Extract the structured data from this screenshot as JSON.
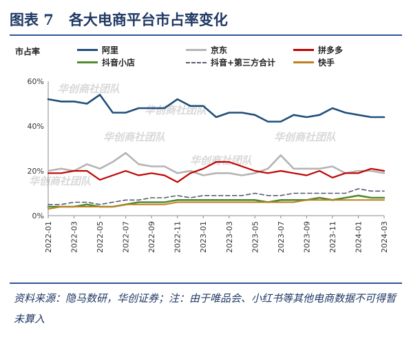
{
  "figure": {
    "label": "图表 7",
    "title": "各大电商平台市占率变化"
  },
  "colors": {
    "title": "#1f3864",
    "ali": "#1f4e79",
    "jd": "#b4b4b4",
    "pdd": "#c00000",
    "douyin": "#4e8a2e",
    "douyin_third": "#555a6e",
    "kuaishou": "#c07f1c"
  },
  "watermark": "华创商社团队",
  "source_note": "资料来源：隐马数研，华创证券；注：由于唯品会、小红书等其他电商数据不可得暂未算入",
  "chart_data": {
    "type": "line",
    "ylabel": "市占率",
    "ylim": [
      0,
      60
    ],
    "yticks": [
      "0%",
      "20%",
      "40%",
      "60%"
    ],
    "grid": false,
    "legend_position": "top",
    "x": [
      "2022-01",
      "2022-02",
      "2022-03",
      "2022-04",
      "2022-05",
      "2022-06",
      "2022-07",
      "2022-08",
      "2022-09",
      "2022-10",
      "2022-11",
      "2022-12",
      "2023-01",
      "2023-02",
      "2023-03",
      "2023-04",
      "2023-05",
      "2023-06",
      "2023-07",
      "2023-08",
      "2023-09",
      "2023-10",
      "2023-11",
      "2023-12",
      "2024-01",
      "2024-02",
      "2024-03"
    ],
    "xticks": [
      "2022-01",
      "2022-03",
      "2022-05",
      "2022-07",
      "2022-09",
      "2022-11",
      "2023-01",
      "2023-03",
      "2023-05",
      "2023-07",
      "2023-09",
      "2023-11",
      "2024-01",
      "2024-03"
    ],
    "series": [
      {
        "name": "阿里",
        "key": "ali",
        "dash": false,
        "values": [
          52,
          51,
          51,
          50,
          54,
          46,
          46,
          48,
          48,
          48,
          52,
          49,
          49,
          44,
          46,
          46,
          45,
          42,
          42,
          45,
          44,
          45,
          48,
          46,
          45,
          44,
          44
        ]
      },
      {
        "name": "京东",
        "key": "jd",
        "dash": false,
        "values": [
          20,
          21,
          20,
          23,
          21,
          24,
          28,
          23,
          22,
          22,
          19,
          20,
          18,
          19,
          19,
          18,
          19,
          21,
          27,
          21,
          21,
          21,
          22,
          19,
          20,
          20,
          19
        ]
      },
      {
        "name": "拼多多",
        "key": "pdd",
        "dash": false,
        "values": [
          19,
          19,
          20,
          20,
          16,
          18,
          20,
          18,
          19,
          18,
          15,
          19,
          21,
          24,
          24,
          22,
          20,
          19,
          20,
          19,
          18,
          20,
          17,
          19,
          19,
          21,
          20
        ]
      },
      {
        "name": "抖音小店",
        "key": "douyin",
        "dash": false,
        "values": [
          4,
          4,
          4,
          5,
          4,
          4,
          5,
          6,
          6,
          6,
          7,
          7,
          7,
          7,
          7,
          7,
          7,
          6,
          7,
          7,
          7,
          8,
          7,
          8,
          9,
          8,
          8
        ]
      },
      {
        "name": "抖音+第三方合计",
        "key": "douyin_third",
        "dash": true,
        "values": [
          5,
          5,
          6,
          6,
          5,
          6,
          7,
          7,
          8,
          8,
          9,
          8,
          9,
          9,
          9,
          9,
          10,
          9,
          9,
          10,
          10,
          10,
          10,
          10,
          12,
          11,
          11
        ]
      },
      {
        "name": "快手",
        "key": "kuaishou",
        "dash": false,
        "values": [
          3,
          4,
          4,
          4,
          4,
          4,
          5,
          5,
          5,
          5,
          6,
          6,
          6,
          6,
          6,
          6,
          6,
          6,
          6,
          6,
          7,
          7,
          7,
          7,
          7,
          7,
          7
        ]
      }
    ]
  }
}
